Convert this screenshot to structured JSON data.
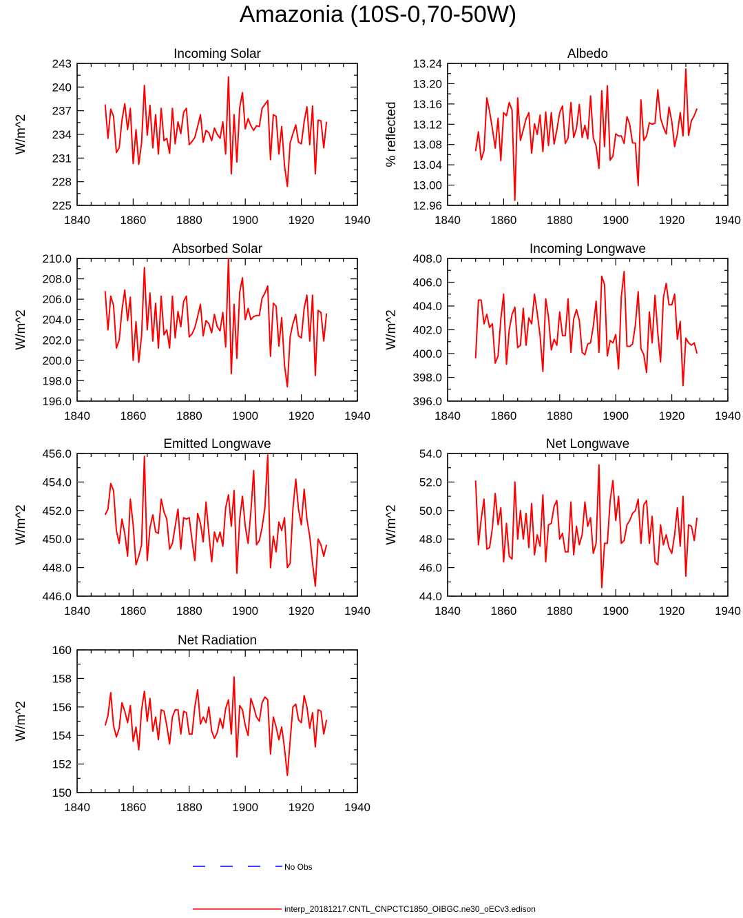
{
  "title": "Amazonia (10S-0,70-50W)",
  "colors": {
    "model": "#ff0000",
    "obs": "#0000ff",
    "axis": "#000000"
  },
  "legend": {
    "obs_label": "No Obs",
    "model_label": "interp_20181217.CNTL_CNPCTC1850_OIBGC.ne30_oECv3.edison"
  },
  "chart_data": [
    {
      "type": "line",
      "title": "Incoming Solar",
      "ylabel": "W/m^2",
      "xlim": [
        1840,
        1940
      ],
      "xticks": [
        "1840",
        "1860",
        "1880",
        "1900",
        "1920",
        "1940"
      ],
      "ylim": [
        225,
        243
      ],
      "yticks": [
        "225",
        "228",
        "231",
        "234",
        "237",
        "240",
        "243"
      ],
      "x_start": 1850,
      "values": [
        237.8,
        233.5,
        237.2,
        236.3,
        231.7,
        232.3,
        235.8,
        237.9,
        234.6,
        237.3,
        230.3,
        234.6,
        230.2,
        232.9,
        240.2,
        233.9,
        237.7,
        232.3,
        236.5,
        231.5,
        237.3,
        233.2,
        233.5,
        231.6,
        237.3,
        232.8,
        235.6,
        234.1,
        236.8,
        237.3,
        232.7,
        233.1,
        233.6,
        235.0,
        236.5,
        233.0,
        234.5,
        234.2,
        233.2,
        234.8,
        234.0,
        233.5,
        235.6,
        231.5,
        241.3,
        229.0,
        236.5,
        230.5,
        237.4,
        239.3,
        234.7,
        236.0,
        235.1,
        234.5,
        235.1,
        235.0,
        237.3,
        237.8,
        238.3,
        230.8,
        236.5,
        236.3,
        231.5,
        235.0,
        230.0,
        227.4,
        232.9,
        234.1,
        235.2,
        233.0,
        232.8,
        235.6,
        237.5,
        232.7,
        237.6,
        229.0,
        235.8,
        235.7,
        232.3,
        235.6
      ]
    },
    {
      "type": "line",
      "title": "Albedo",
      "ylabel": "% reflected",
      "xlim": [
        1840,
        1940
      ],
      "xticks": [
        "1840",
        "1860",
        "1880",
        "1900",
        "1920",
        "1940"
      ],
      "ylim": [
        12.96,
        13.24
      ],
      "yticks": [
        "12.96",
        "13.00",
        "13.04",
        "13.08",
        "13.12",
        "13.16",
        "13.20",
        "13.24"
      ],
      "x_start": 1850,
      "values": [
        13.067,
        13.105,
        13.05,
        13.068,
        13.172,
        13.145,
        13.111,
        13.073,
        13.132,
        13.048,
        13.143,
        13.137,
        13.163,
        13.148,
        12.97,
        13.172,
        13.088,
        13.109,
        13.131,
        13.143,
        13.063,
        13.121,
        13.1,
        13.138,
        13.066,
        13.144,
        13.078,
        13.143,
        13.081,
        13.109,
        13.143,
        13.156,
        13.082,
        13.093,
        13.163,
        13.094,
        13.112,
        13.159,
        13.094,
        13.118,
        13.091,
        13.176,
        13.093,
        13.077,
        13.033,
        13.186,
        13.076,
        13.196,
        13.049,
        13.057,
        13.101,
        13.097,
        13.097,
        13.082,
        13.135,
        13.12,
        13.083,
        13.083,
        12.999,
        13.168,
        13.088,
        13.097,
        13.123,
        13.12,
        13.122,
        13.188,
        13.132,
        13.114,
        13.101,
        13.154,
        13.126,
        13.076,
        13.101,
        13.143,
        13.097,
        13.229,
        13.098,
        13.127,
        13.137,
        13.151
      ]
    },
    {
      "type": "line",
      "title": "Absorbed Solar",
      "ylabel": "W/m^2",
      "xlim": [
        1840,
        1940
      ],
      "xticks": [
        "1840",
        "1860",
        "1880",
        "1900",
        "1920",
        "1940"
      ],
      "ylim": [
        196.0,
        210.0
      ],
      "yticks": [
        "196.0",
        "198.0",
        "200.0",
        "202.0",
        "204.0",
        "206.0",
        "208.0",
        "210.0"
      ],
      "x_start": 1850,
      "values": [
        206.8,
        203.0,
        206.3,
        205.4,
        201.2,
        202.0,
        204.9,
        206.9,
        203.9,
        206.2,
        200.0,
        203.8,
        199.8,
        202.4,
        209.1,
        203.0,
        206.6,
        201.9,
        205.6,
        201.2,
        206.3,
        202.5,
        203.0,
        201.2,
        206.3,
        202.2,
        204.8,
        203.3,
        205.8,
        206.3,
        202.3,
        202.6,
        203.2,
        204.3,
        205.5,
        202.4,
        203.9,
        203.6,
        202.7,
        204.5,
        203.3,
        202.9,
        204.7,
        201.3,
        210.0,
        198.7,
        205.5,
        200.2,
        206.7,
        208.1,
        204.0,
        205.1,
        204.0,
        204.3,
        204.4,
        204.4,
        206.1,
        206.6,
        207.3,
        200.4,
        205.6,
        205.3,
        201.4,
        204.2,
        199.5,
        197.4,
        202.3,
        203.6,
        204.5,
        202.4,
        202.2,
        205.1,
        206.4,
        201.9,
        206.4,
        198.5,
        204.9,
        204.7,
        201.9,
        204.6
      ]
    },
    {
      "type": "line",
      "title": "Incoming Longwave",
      "ylabel": "W/m^2",
      "xlim": [
        1840,
        1940
      ],
      "xticks": [
        "1840",
        "1860",
        "1880",
        "1900",
        "1920",
        "1940"
      ],
      "ylim": [
        396.0,
        408.0
      ],
      "yticks": [
        "396.0",
        "398.0",
        "400.0",
        "402.0",
        "404.0",
        "406.0",
        "408.0"
      ],
      "x_start": 1850,
      "values": [
        399.6,
        404.5,
        404.5,
        402.5,
        403.3,
        402.2,
        402.5,
        399.2,
        399.8,
        402.9,
        405.0,
        399.1,
        402.0,
        403.3,
        403.9,
        400.5,
        400.7,
        403.8,
        400.7,
        403.0,
        402.5,
        405.0,
        403.4,
        401.5,
        398.5,
        404.6,
        403.1,
        400.3,
        401.2,
        400.7,
        403.5,
        401.5,
        401.5,
        404.6,
        400.1,
        402.9,
        403.7,
        402.8,
        400.1,
        399.9,
        400.8,
        400.9,
        402.3,
        404.4,
        400.1,
        406.5,
        405.8,
        399.8,
        401.1,
        400.9,
        401.6,
        398.7,
        404.8,
        406.9,
        400.6,
        400.6,
        400.8,
        402.4,
        405.2,
        400.4,
        399.9,
        398.4,
        403.5,
        400.9,
        404.9,
        401.7,
        399.3,
        404.7,
        405.9,
        404.1,
        404.1,
        405.0,
        401.2,
        402.7,
        397.3,
        401.3,
        400.9,
        400.7,
        400.9,
        400.0
      ]
    },
    {
      "type": "line",
      "title": "Emitted Longwave",
      "ylabel": "W/m^2",
      "xlim": [
        1840,
        1940
      ],
      "xticks": [
        "1840",
        "1860",
        "1880",
        "1900",
        "1920",
        "1940"
      ],
      "ylim": [
        446.0,
        456.0
      ],
      "yticks": [
        "446.0",
        "448.0",
        "450.0",
        "452.0",
        "454.0",
        "456.0"
      ],
      "x_start": 1850,
      "values": [
        451.7,
        452.1,
        453.9,
        453.4,
        450.6,
        449.7,
        451.4,
        450.4,
        448.8,
        452.8,
        451.0,
        448.2,
        448.8,
        449.6,
        455.8,
        448.5,
        450.8,
        451.7,
        450.5,
        450.4,
        452.8,
        451.9,
        451.4,
        449.3,
        449.7,
        450.9,
        452.1,
        449.3,
        451.5,
        451.4,
        451.5,
        449.9,
        448.5,
        451.8,
        451.1,
        449.8,
        452.6,
        450.4,
        448.4,
        450.5,
        449.8,
        450.5,
        449.5,
        452.2,
        453.1,
        450.9,
        453.4,
        447.6,
        451.4,
        453.0,
        450.9,
        449.7,
        451.9,
        454.8,
        449.6,
        449.9,
        450.8,
        452.2,
        455.9,
        448.0,
        450.2,
        449.1,
        451.2,
        450.6,
        451.5,
        448.0,
        448.3,
        452.1,
        454.2,
        452.1,
        451.0,
        453.5,
        451.4,
        450.2,
        448.3,
        446.7,
        450.0,
        449.6,
        448.8,
        449.6
      ]
    },
    {
      "type": "line",
      "title": "Net Longwave",
      "ylabel": "W/m^2",
      "xlim": [
        1840,
        1940
      ],
      "xticks": [
        "1840",
        "1860",
        "1880",
        "1900",
        "1920",
        "1940"
      ],
      "ylim": [
        44.0,
        54.0
      ],
      "yticks": [
        "44.0",
        "46.0",
        "48.0",
        "50.0",
        "52.0",
        "54.0"
      ],
      "x_start": 1850,
      "values": [
        52.1,
        47.6,
        49.4,
        50.8,
        47.3,
        47.4,
        48.8,
        51.2,
        49.0,
        50.2,
        46.4,
        49.1,
        46.8,
        46.6,
        52.0,
        48.0,
        50.0,
        48.0,
        49.8,
        47.4,
        50.5,
        46.9,
        48.3,
        47.5,
        51.1,
        46.4,
        49.0,
        49.1,
        50.3,
        50.7,
        48.0,
        48.4,
        47.1,
        47.1,
        50.6,
        46.9,
        48.9,
        47.6,
        48.3,
        50.6,
        48.9,
        49.5,
        47.0,
        47.7,
        53.2,
        44.6,
        47.7,
        47.7,
        50.7,
        52.1,
        49.3,
        51.0,
        47.7,
        47.9,
        49.0,
        49.3,
        49.8,
        50.0,
        50.8,
        47.7,
        50.4,
        50.7,
        47.7,
        49.6,
        46.4,
        46.2,
        49.0,
        47.6,
        48.3,
        47.4,
        47.0,
        48.3,
        50.2,
        47.5,
        51.0,
        45.4,
        49.0,
        48.9,
        47.9,
        49.5
      ]
    },
    {
      "type": "line",
      "title": "Net Radiation",
      "ylabel": "W/m^2",
      "xlim": [
        1840,
        1940
      ],
      "xticks": [
        "1840",
        "1860",
        "1880",
        "1900",
        "1920",
        "1940"
      ],
      "ylim": [
        150,
        160
      ],
      "yticks": [
        "150",
        "152",
        "154",
        "156",
        "158",
        "160"
      ],
      "x_start": 1850,
      "values": [
        154.7,
        155.4,
        157.0,
        154.7,
        153.9,
        154.5,
        156.3,
        155.7,
        154.9,
        156.1,
        153.6,
        154.6,
        153.0,
        155.8,
        157.1,
        155.0,
        156.6,
        154.3,
        155.3,
        153.7,
        155.8,
        155.7,
        154.7,
        153.4,
        155.3,
        155.8,
        155.8,
        154.1,
        155.7,
        155.6,
        154.1,
        154.1,
        156.0,
        157.2,
        154.8,
        155.3,
        154.9,
        156.0,
        154.3,
        153.8,
        154.2,
        155.2,
        154.5,
        155.9,
        156.5,
        154.1,
        158.1,
        152.5,
        156.1,
        155.8,
        154.7,
        154.0,
        156.6,
        156.0,
        155.3,
        155.0,
        156.3,
        156.7,
        156.5,
        152.7,
        155.3,
        154.6,
        153.7,
        154.6,
        153.1,
        151.2,
        153.6,
        156.0,
        156.2,
        155.1,
        154.9,
        156.8,
        156.0,
        154.5,
        155.6,
        153.2,
        155.8,
        155.7,
        154.1,
        155.1
      ]
    }
  ]
}
